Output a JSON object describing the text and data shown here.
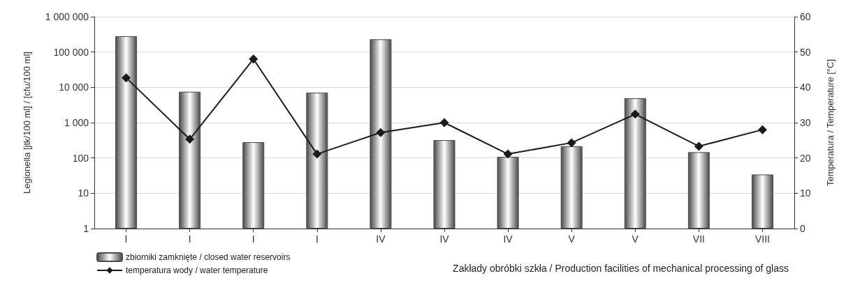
{
  "chart_data": {
    "type": "bar",
    "xlabel": "Zakłady obróbki szkła / Production facilities of mechanical processing of glass",
    "ylabel": "Legionella [jtk/100 ml] / [cfu/100 ml]",
    "y2label": "Temperatura / Temperature [°C]",
    "categories": [
      "I",
      "I",
      "I",
      "I",
      "IV",
      "IV",
      "IV",
      "V",
      "V",
      "VII",
      "VIII"
    ],
    "series": [
      {
        "name": "zbiorniki zamknięte / closed water reservoirs",
        "color": "#4a4a4a",
        "values": [
          280000,
          7500,
          280,
          7100,
          230000,
          320,
          108,
          215,
          4900,
          146,
          34
        ]
      },
      {
        "name": "temperatura wody / water temperature",
        "type": "line",
        "axis": "y2",
        "color": "#1a1a1a",
        "marker": "diamond",
        "values": [
          42.7,
          25.3,
          48.0,
          21.1,
          27.2,
          30.0,
          21.1,
          24.3,
          32.4,
          23.3,
          28.0
        ]
      }
    ],
    "log": "y",
    "ylim": [
      1,
      1000000
    ],
    "yticks": [
      1,
      10,
      100,
      {
        "value": 1000,
        "label": "1 000"
      },
      {
        "value": 10000,
        "label": "10 000"
      },
      {
        "value": 100000,
        "label": "100 000"
      },
      {
        "value": 1000000,
        "label": "1 000 000"
      }
    ],
    "y2lim": [
      0,
      60
    ],
    "y2ticks": [
      0,
      10,
      20,
      30,
      40,
      50,
      60
    ],
    "grid": "y",
    "legend": "bottom left"
  }
}
